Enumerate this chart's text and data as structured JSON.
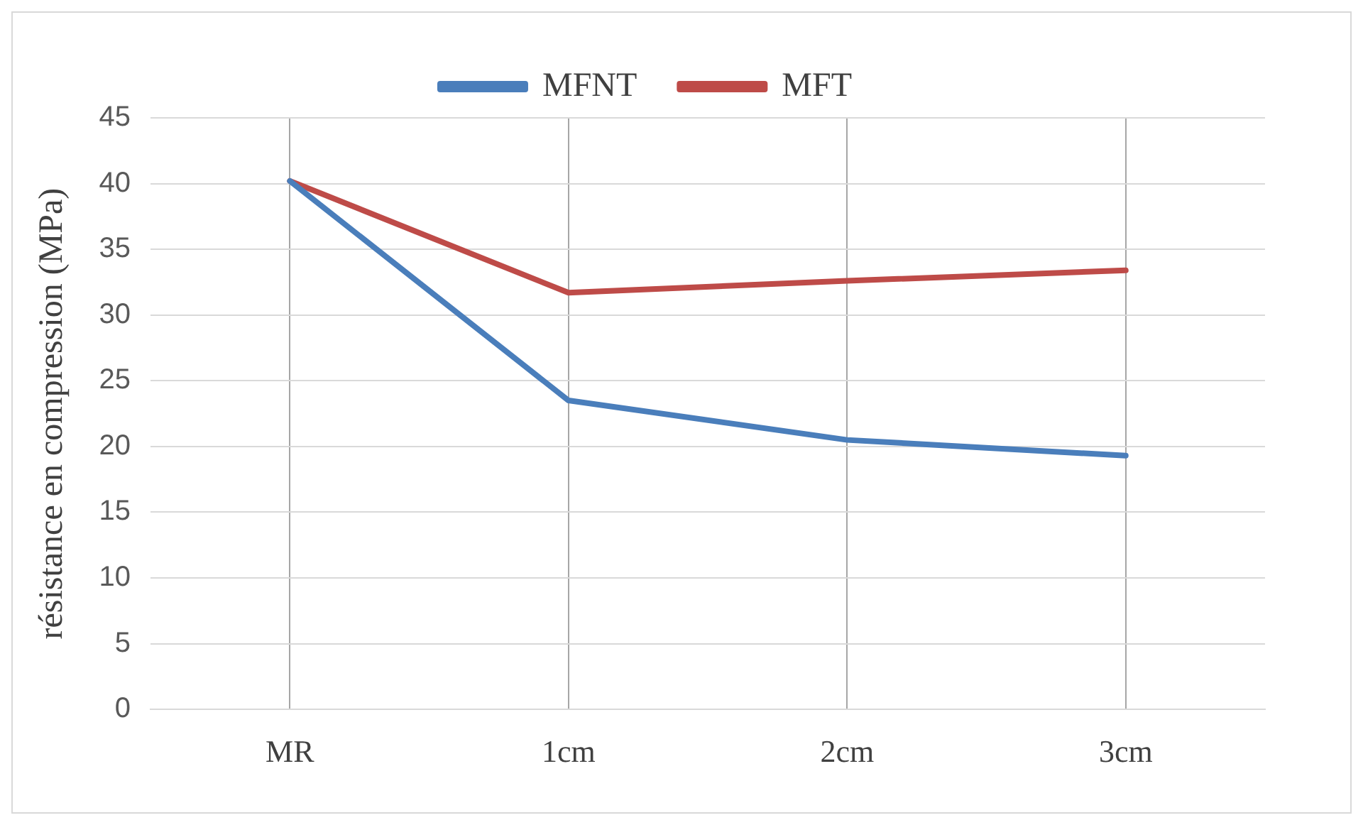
{
  "chart_data": {
    "type": "line",
    "ylabel": "résistance en compression (MPa)",
    "categories": [
      "MR",
      "1cm",
      "2cm",
      "3cm"
    ],
    "series": [
      {
        "name": "MFNT",
        "color": "#4a7ebb",
        "values": [
          40.2,
          23.5,
          20.5,
          19.3
        ]
      },
      {
        "name": "MFT",
        "color": "#be4b48",
        "values": [
          40.2,
          31.7,
          32.6,
          33.4
        ]
      }
    ],
    "ylim": [
      0,
      45
    ],
    "yticks": [
      0,
      5,
      10,
      15,
      20,
      25,
      30,
      35,
      40,
      45
    ],
    "grid": true,
    "legend": "top",
    "marker": "none",
    "line_style": "solid"
  }
}
